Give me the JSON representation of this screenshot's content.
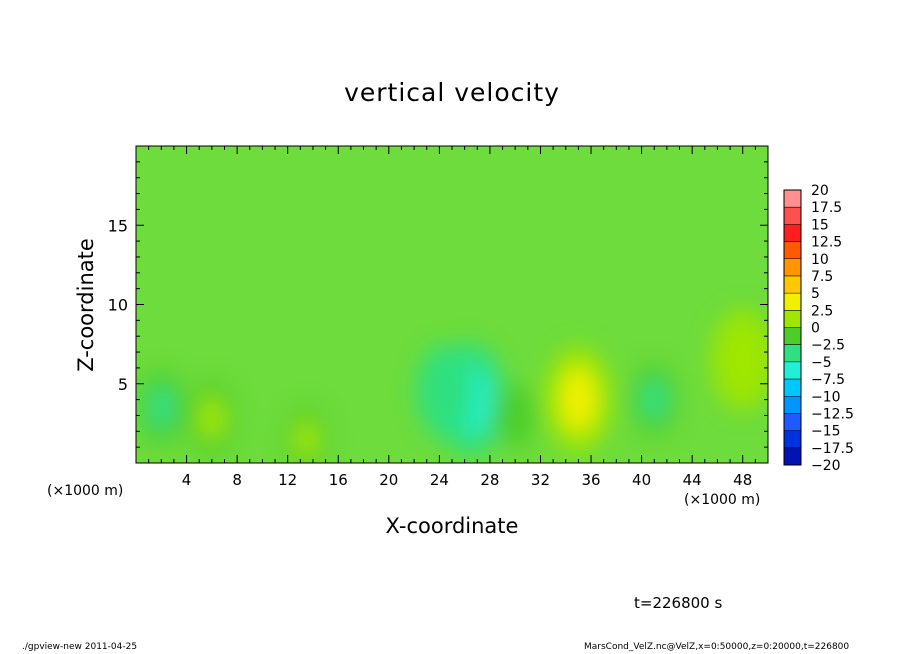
{
  "chart_data": {
    "type": "heatmap",
    "title": "vertical velocity",
    "xlabel": "X-coordinate",
    "ylabel": "Z-coordinate",
    "x_unit": "(×1000 m)",
    "xlim": [
      0,
      50
    ],
    "ylim": [
      0,
      20
    ],
    "xticks": [
      4,
      8,
      12,
      16,
      20,
      24,
      28,
      32,
      36,
      40,
      44,
      48
    ],
    "yticks": [
      5,
      10,
      15
    ],
    "colorbar": {
      "levels": [
        "20",
        "17.5",
        "15",
        "12.5",
        "10",
        "7.5",
        "5",
        "2.5",
        "0",
        "−2.5",
        "−5",
        "−7.5",
        "−10",
        "−12.5",
        "−15",
        "−17.5",
        "−20"
      ],
      "colors": [
        "#ff9090",
        "#ff5050",
        "#ff1e1e",
        "#ff5a00",
        "#ff9600",
        "#ffc800",
        "#f0f000",
        "#a0e600",
        "#4ccd2a",
        "#2ee080",
        "#20f0d8",
        "#00c8ff",
        "#0096ff",
        "#1e5aff",
        "#0032e0",
        "#0014b4",
        "#4b0aa0"
      ]
    },
    "features": [
      {
        "x": 35,
        "z": 4.0,
        "w": 2.0
      },
      {
        "x": 48,
        "z": 6.5,
        "w": 1.8
      },
      {
        "x": 6,
        "z": 2.8,
        "w": 1.0
      },
      {
        "x": 26.5,
        "z": 4.0,
        "w": -2.2
      },
      {
        "x": 24.5,
        "z": 4.5,
        "w": -1.6
      },
      {
        "x": 2,
        "z": 3.5,
        "w": -1.0
      },
      {
        "x": 13.5,
        "z": 1.5,
        "w": 0.7
      },
      {
        "x": 30,
        "z": 3.0,
        "w": 0.6
      },
      {
        "x": 41,
        "z": 4.0,
        "w": -0.9
      }
    ]
  },
  "annotations": {
    "time": "t=226800 s",
    "footer_left": "./gpview-new   2011-04-25",
    "footer_right": "MarsCond_VelZ.nc@VelZ,x=0:50000,z=0:20000,t=226800"
  }
}
